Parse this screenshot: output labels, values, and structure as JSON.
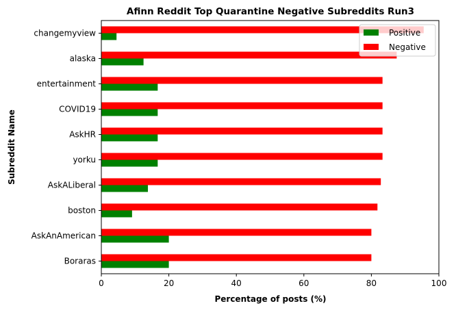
{
  "chart_data": {
    "type": "bar",
    "orientation": "horizontal",
    "title": "Afinn Reddit Top Quarantine Negative Subreddits Run3",
    "xlabel": "Percentage of posts (%)",
    "ylabel": "Subreddit Name",
    "xlim": [
      0,
      100
    ],
    "xticks": [
      0,
      20,
      40,
      60,
      80,
      100
    ],
    "grid": false,
    "legend_position": "top-right",
    "categories": [
      "Boraras",
      "AskAnAmerican",
      "boston",
      "AskALiberal",
      "yorku",
      "AskHR",
      "COVID19",
      "entertainment",
      "alaska",
      "changemyview"
    ],
    "series": [
      {
        "name": "Positive",
        "color": "#008000",
        "values": [
          20.0,
          20.0,
          9.1,
          13.8,
          16.7,
          16.7,
          16.7,
          16.7,
          12.5,
          4.5
        ]
      },
      {
        "name": "Negative",
        "color": "#ff0000",
        "values": [
          80.0,
          80.0,
          81.8,
          82.8,
          83.3,
          83.3,
          83.3,
          83.3,
          87.5,
          95.5
        ]
      }
    ]
  }
}
